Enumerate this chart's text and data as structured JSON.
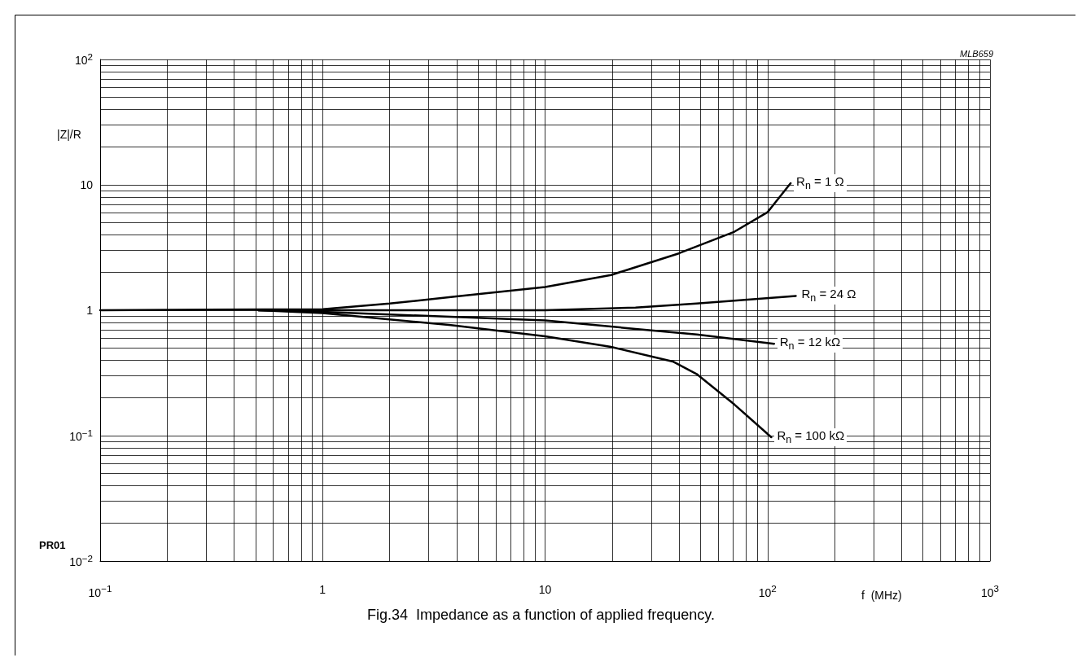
{
  "chart_data": {
    "type": "line",
    "title": "Fig.34  Impedance as a function of applied frequency.",
    "xlabel": "f  (MHz)",
    "ylabel": "|Z|/R",
    "annotations": [
      "MLB659",
      "PR01"
    ],
    "log": "xy",
    "grid": true,
    "legend": false,
    "marker": "none",
    "line_style": "solid",
    "xlim": [
      0.1,
      1000
    ],
    "ylim": [
      0.01,
      100
    ],
    "xticks": [
      {
        "value": 0.1,
        "label": "10$^{−1}$"
      },
      1,
      10,
      {
        "value": 100,
        "label": "10$^{2}$"
      },
      {
        "value": 1000,
        "label": "10$^{3}$"
      }
    ],
    "yticks": [
      {
        "value": 0.01,
        "label": "10$^{−2}$"
      },
      {
        "value": 0.1,
        "label": "10$^{−1}$"
      },
      1,
      10,
      {
        "value": 100,
        "label": "10$^{2}$"
      }
    ],
    "series": [
      {
        "name": "R$_{n}$ = 1 Ω",
        "color": "#000000",
        "x": [
          0.1,
          1,
          2,
          4,
          10,
          19.8,
          39.9,
          71,
          100,
          127
        ],
        "values": [
          1.0,
          1.02,
          1.13,
          1.29,
          1.53,
          1.91,
          2.84,
          4.23,
          6.05,
          10.3
        ]
      },
      {
        "name": "R$_{n}$ = 24 Ω",
        "color": "#000000",
        "x": [
          0.515,
          1,
          10,
          25.5,
          48,
          134
        ],
        "values": [
          1.0,
          1.0,
          1.0,
          1.05,
          1.13,
          1.3
        ]
      },
      {
        "name": "R$_{n}$ = 12 kΩ",
        "color": "#000000",
        "x": [
          0.515,
          1,
          10,
          25.5,
          48,
          107
        ],
        "values": [
          1.0,
          0.97,
          0.83,
          0.71,
          0.64,
          0.54
        ]
      },
      {
        "name": "R$_{n}$ = 100 kΩ",
        "color": "#000000",
        "x": [
          0.515,
          1,
          3.77,
          10,
          19.8,
          37.5,
          48,
          71,
          104
        ],
        "values": [
          1.0,
          0.95,
          0.76,
          0.62,
          0.51,
          0.39,
          0.31,
          0.177,
          0.097
        ]
      }
    ]
  }
}
